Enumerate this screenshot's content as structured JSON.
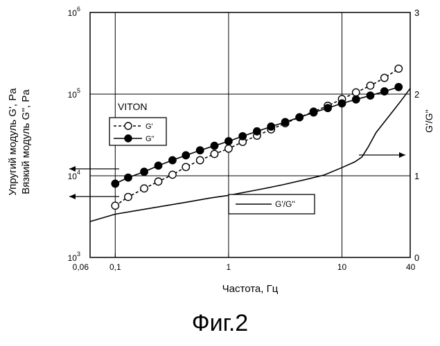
{
  "chart_data": {
    "type": "line",
    "xlabel": "Частота, Гц",
    "x_scale": "log",
    "xlim": [
      0.06,
      40
    ],
    "x_ticks": [
      {
        "value": 0.06,
        "label": "0,06"
      },
      {
        "value": 0.1,
        "label": "0,1"
      },
      {
        "value": 1,
        "label": "1"
      },
      {
        "value": 10,
        "label": "10"
      },
      {
        "value": 40,
        "label": "40"
      }
    ],
    "ylabel_left": [
      "Упругий модуль G', Pa",
      "Вязкий модуль G'', Pa"
    ],
    "y_scale_left": "log",
    "ylim_left": [
      1000,
      1000000
    ],
    "y_ticks_left": [
      {
        "value": 1000,
        "label_base": "10",
        "label_exp": "3"
      },
      {
        "value": 10000,
        "label_base": "10",
        "label_exp": "4"
      },
      {
        "value": 100000,
        "label_base": "10",
        "label_exp": "5"
      },
      {
        "value": 1000000,
        "label_base": "10",
        "label_exp": "6"
      }
    ],
    "ylabel_right": "G'/G''",
    "ylim_right": [
      0,
      3
    ],
    "y_ticks_right": [
      {
        "value": 0,
        "label": "0"
      },
      {
        "value": 1,
        "label": "1"
      },
      {
        "value": 2,
        "label": "2"
      },
      {
        "value": 3,
        "label": "3"
      }
    ],
    "grid": true,
    "legend_group_title": "VITON",
    "series": [
      {
        "name": "G'",
        "axis": "left",
        "marker": "open-circle",
        "line": "dashed",
        "x": [
          0.1,
          0.13,
          0.18,
          0.24,
          0.32,
          0.42,
          0.56,
          0.75,
          1.0,
          1.33,
          1.78,
          2.37,
          3.16,
          4.22,
          5.62,
          7.5,
          10,
          13.3,
          17.8,
          23.7,
          31.6
        ],
        "y": [
          4300,
          5500,
          7000,
          8500,
          10300,
          12800,
          15500,
          18500,
          21500,
          26000,
          31000,
          37000,
          44000,
          52000,
          61000,
          72000,
          87000,
          105000,
          127000,
          158000,
          205000
        ]
      },
      {
        "name": "G''",
        "axis": "left",
        "marker": "filled-circle",
        "line": "solid",
        "x": [
          0.1,
          0.13,
          0.18,
          0.24,
          0.32,
          0.42,
          0.56,
          0.75,
          1.0,
          1.33,
          1.78,
          2.37,
          3.16,
          4.22,
          5.62,
          7.5,
          10,
          13.3,
          17.8,
          23.7,
          31.6
        ],
        "y": [
          8000,
          9500,
          11200,
          13300,
          15500,
          17800,
          20500,
          23300,
          26500,
          30500,
          35000,
          40000,
          45500,
          52000,
          59500,
          67500,
          77000,
          86000,
          96000,
          108000,
          122000
        ]
      },
      {
        "name": "G'/G''",
        "axis": "right",
        "marker": "none",
        "line": "solid",
        "x": [
          0.06,
          0.1,
          0.2,
          0.4,
          0.7,
          1,
          2,
          3,
          5,
          7,
          10,
          13,
          15,
          17,
          20,
          25,
          30,
          35,
          40
        ],
        "y": [
          0.44,
          0.53,
          0.6,
          0.67,
          0.73,
          0.76,
          0.84,
          0.89,
          0.96,
          1.01,
          1.1,
          1.17,
          1.23,
          1.35,
          1.53,
          1.7,
          1.84,
          1.96,
          2.07
        ]
      }
    ],
    "axis_arrows": [
      {
        "series": "G''",
        "points_to": "left"
      },
      {
        "series": "G'",
        "points_to": "left"
      },
      {
        "series": "G'/G''",
        "points_to": "right"
      }
    ]
  },
  "figure_caption": "Фиг.2"
}
